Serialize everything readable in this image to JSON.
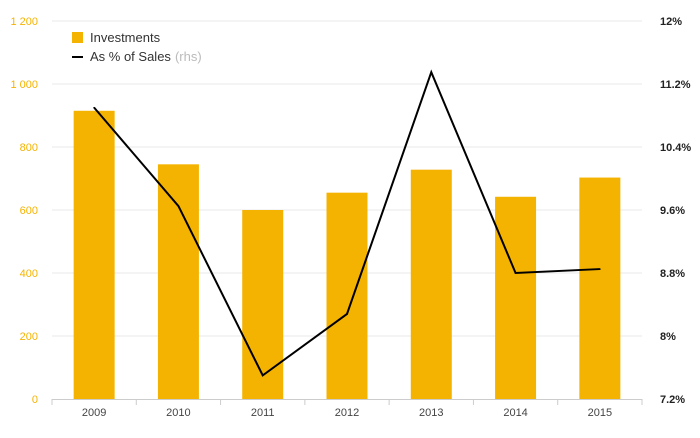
{
  "colors": {
    "bar": "#F5B301",
    "line": "#000000",
    "left_axis_text": "#F5B301",
    "right_axis_text": "#222222",
    "grid": "#e9e9e9",
    "x_axis_text": "#444444"
  },
  "legend": {
    "bar_label": "Investments",
    "line_label": "As % of Sales",
    "line_suffix": "(rhs)"
  },
  "chart_data": {
    "type": "bar",
    "categories": [
      "2009",
      "2010",
      "2011",
      "2012",
      "2013",
      "2014",
      "2015"
    ],
    "series": [
      {
        "name": "Investments",
        "type": "bar",
        "axis": "left",
        "values": [
          915,
          745,
          600,
          655,
          728,
          642,
          703
        ]
      },
      {
        "name": "As % of Sales (rhs)",
        "type": "line",
        "axis": "right",
        "values": [
          10.9,
          9.65,
          7.5,
          8.28,
          11.35,
          8.8,
          8.85
        ]
      }
    ],
    "y_left": {
      "min": 0,
      "max": 1200,
      "ticks": [
        0,
        200,
        400,
        600,
        800,
        1000,
        1200
      ],
      "tick_labels": [
        "0",
        "200",
        "400",
        "600",
        "800",
        "1 000",
        "1 200"
      ]
    },
    "y_right": {
      "min": 7.2,
      "max": 12,
      "ticks": [
        7.2,
        8,
        8.8,
        9.6,
        10.4,
        11.2,
        12
      ],
      "tick_labels": [
        "7.2%",
        "8%",
        "8.8%",
        "9.6%",
        "10.4%",
        "11.2%",
        "12%"
      ]
    },
    "grid": true,
    "legend_position": "top-left"
  }
}
